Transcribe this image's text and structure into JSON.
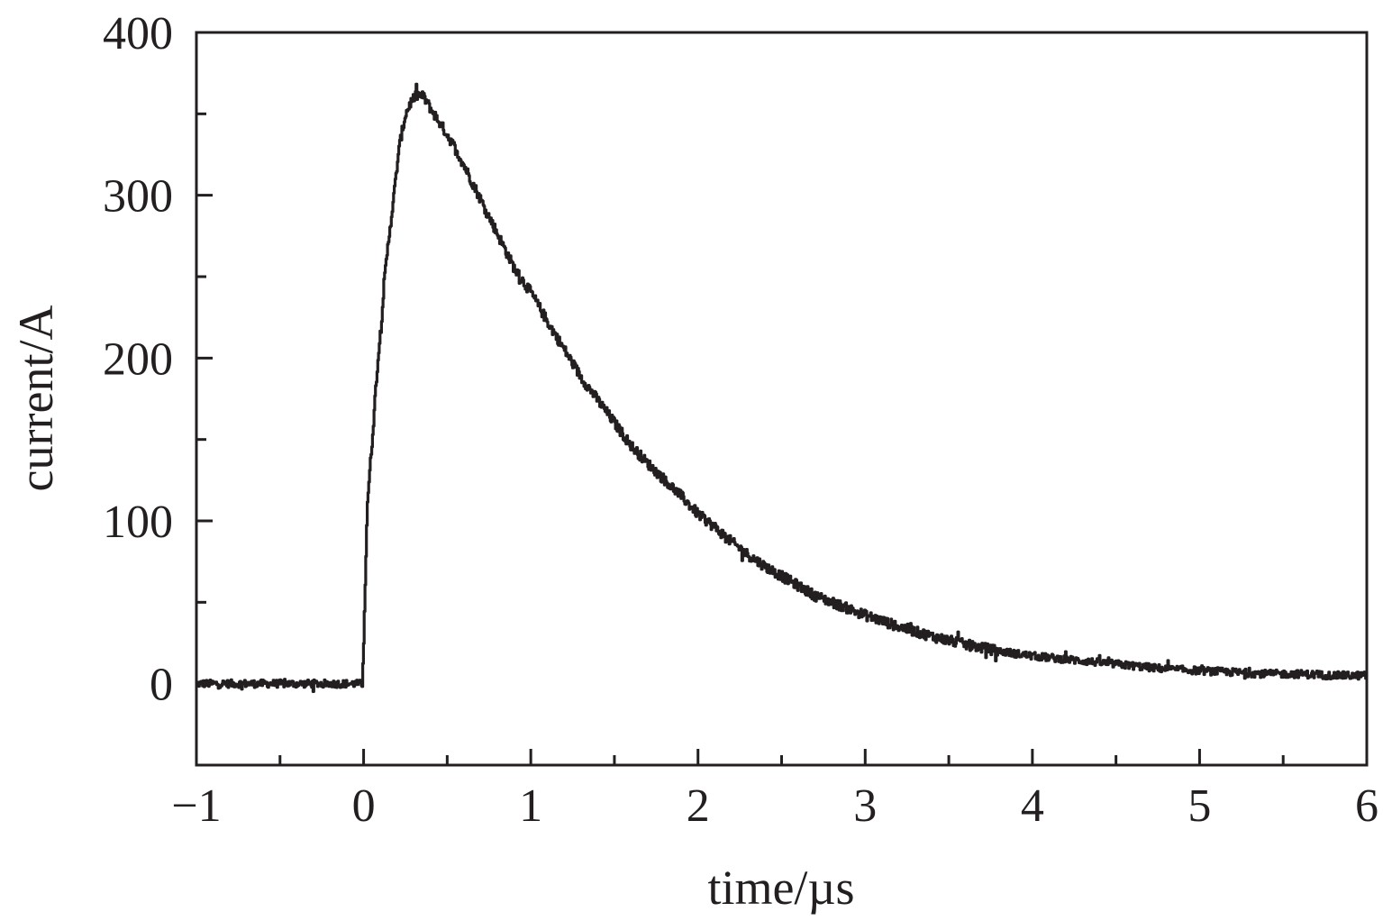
{
  "chart_data": {
    "type": "line",
    "xlabel": "time/µs",
    "ylabel": "current/A",
    "xlim": [
      -1,
      6
    ],
    "ylim": [
      -50,
      400
    ],
    "x_ticks": [
      -1,
      0,
      1,
      2,
      3,
      4,
      5,
      6
    ],
    "x_tick_labels": [
      "−1",
      "0",
      "1",
      "2",
      "3",
      "4",
      "5",
      "6"
    ],
    "x_minor_step": 0.5,
    "y_ticks": [
      0,
      100,
      200,
      300,
      400
    ],
    "y_tick_labels": [
      "0",
      "100",
      "200",
      "300",
      "400"
    ],
    "y_minor_step": 50,
    "grid": false,
    "legend": "none",
    "line_color": "#231f20",
    "series": [
      {
        "x": [
          -1.0,
          -0.9,
          -0.8,
          -0.7,
          -0.6,
          -0.5,
          -0.4,
          -0.3,
          -0.2,
          -0.1,
          -0.01,
          0.0,
          0.02,
          0.05,
          0.08,
          0.1,
          0.12,
          0.15,
          0.18,
          0.2,
          0.22,
          0.25,
          0.28,
          0.3,
          0.33,
          0.36,
          0.4,
          0.45,
          0.5,
          0.55,
          0.6,
          0.7,
          0.8,
          0.9,
          1.0,
          1.1,
          1.2,
          1.3,
          1.4,
          1.5,
          1.6,
          1.7,
          1.8,
          1.9,
          2.0,
          2.1,
          2.2,
          2.3,
          2.4,
          2.5,
          2.6,
          2.7,
          2.8,
          2.9,
          3.0,
          3.2,
          3.4,
          3.6,
          3.8,
          4.0,
          4.2,
          4.4,
          4.6,
          4.8,
          5.0,
          5.2,
          5.4,
          5.6,
          5.8,
          6.0
        ],
        "y": [
          0,
          0,
          0,
          0,
          0,
          0,
          0,
          0,
          0,
          0,
          0,
          30,
          110,
          150,
          195,
          215,
          245,
          275,
          300,
          320,
          335,
          350,
          357,
          360,
          362,
          360,
          353,
          345,
          337,
          328,
          318,
          297,
          276,
          255,
          240,
          222,
          205,
          188,
          174,
          160,
          146,
          135,
          125,
          115,
          104,
          96,
          87,
          79,
          72,
          66,
          60,
          54,
          50,
          46,
          42,
          35,
          29,
          24,
          20,
          17,
          15,
          13,
          11,
          9,
          8,
          7,
          6,
          6,
          5,
          5
        ]
      }
    ]
  }
}
